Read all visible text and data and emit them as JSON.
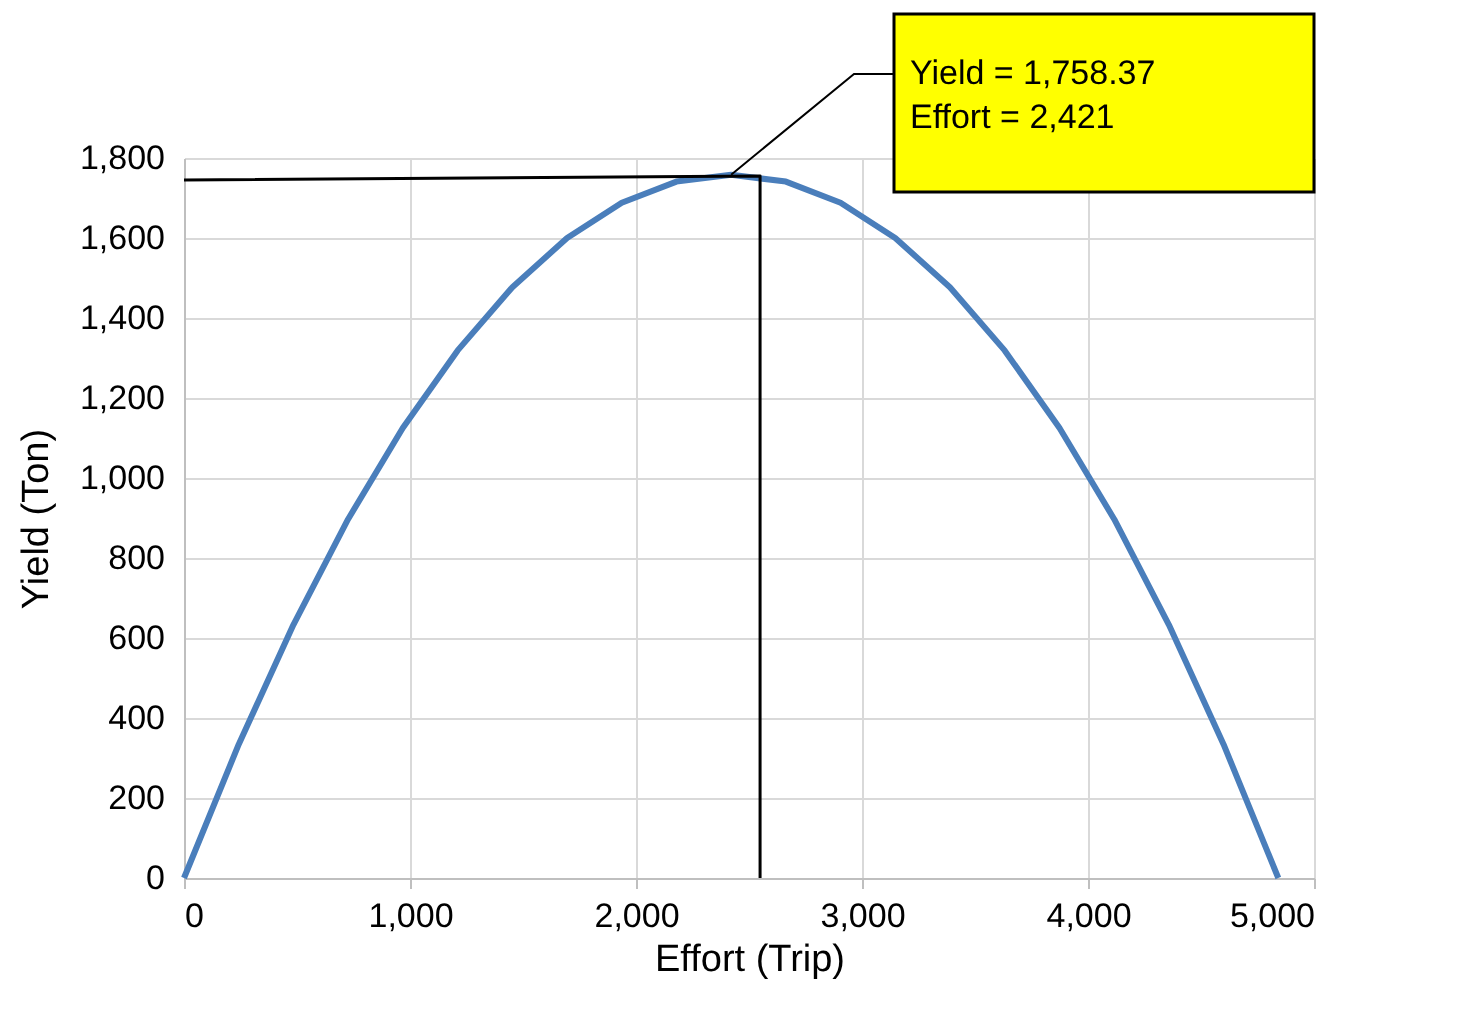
{
  "chart_data": {
    "type": "line",
    "xlabel": "Effort (Trip)",
    "ylabel": "Yield (Ton)",
    "xlim": [
      0,
      5000
    ],
    "xticks": [
      0,
      {
        "value": 1000,
        "label": "1,000"
      },
      {
        "value": 2000,
        "label": "2,000"
      },
      {
        "value": 3000,
        "label": "3,000"
      },
      {
        "value": 4000,
        "label": "4,000"
      },
      {
        "value": 5000,
        "label": "5,000"
      }
    ],
    "ylim": [
      0,
      1800
    ],
    "yticks": [
      0,
      200,
      400,
      600,
      800,
      {
        "value": 1000,
        "label": "1,000"
      },
      {
        "value": 1200,
        "label": "1,200"
      },
      {
        "value": 1400,
        "label": "1,400"
      },
      {
        "value": 1600,
        "label": "1,600"
      },
      {
        "value": 1800,
        "label": "1,800"
      }
    ],
    "grid": true,
    "series": [
      {
        "color": "#4a7ebb",
        "x": [
          0,
          242,
          484,
          726,
          968,
          1211,
          1453,
          1695,
          1937,
          2179,
          2421,
          2663,
          2905,
          3147,
          3389,
          3631,
          3874,
          4116,
          4358,
          4600,
          4842
        ],
        "values": [
          0,
          334,
          633,
          897,
          1125,
          1319,
          1477,
          1600,
          1688,
          1741,
          1758,
          1741,
          1688,
          1600,
          1477,
          1319,
          1125,
          897,
          633,
          334,
          0
        ]
      },
      {
        "color": "#000000",
        "x": [
          0,
          2549,
          2549
        ],
        "values": [
          1745,
          1755,
          0
        ]
      }
    ],
    "annotations": [
      {
        "text": "Yield  =  1,758.37\nEffort  = 2,421",
        "x": 2421,
        "y": 1758.37
      }
    ]
  }
}
